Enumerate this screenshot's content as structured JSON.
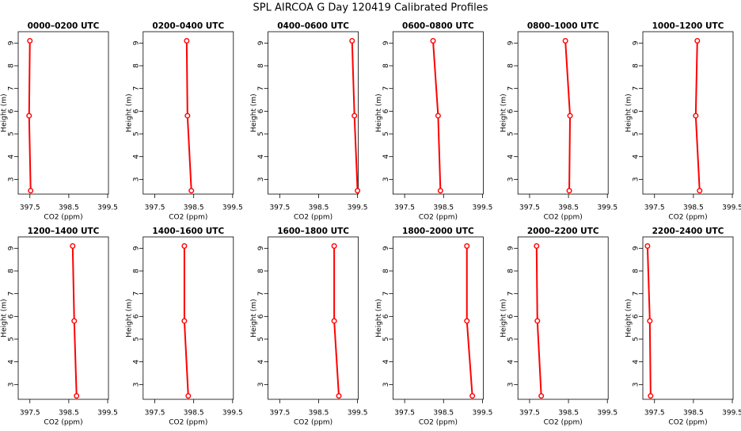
{
  "title": "SPL AIRCOA G  Day 120419  Calibrated Profiles",
  "chart_data": [
    {
      "type": "line",
      "title": "0000–0200 UTC",
      "x_label": "CO2 (ppm)",
      "y_label": "Height (m)",
      "color": "#ff0000",
      "x": [
        397.52,
        397.48,
        397.5
      ],
      "values": [
        2.5,
        5.8,
        9.1
      ],
      "xlim": [
        397.2,
        399.52
      ],
      "ylim": [
        2.35,
        9.5
      ],
      "xticks": [
        397.5,
        398.5,
        399.5
      ],
      "yticks": [
        3,
        4,
        5,
        6,
        7,
        8,
        9
      ]
    },
    {
      "type": "line",
      "title": "0200–0400 UTC",
      "x_label": "CO2 (ppm)",
      "y_label": "Height (m)",
      "color": "#ff0000",
      "x": [
        398.44,
        398.34,
        398.32
      ],
      "values": [
        2.5,
        5.8,
        9.1
      ],
      "xlim": [
        397.2,
        399.52
      ],
      "ylim": [
        2.35,
        9.5
      ],
      "xticks": [
        397.5,
        398.5,
        399.5
      ],
      "yticks": [
        3,
        4,
        5,
        6,
        7,
        8,
        9
      ]
    },
    {
      "type": "line",
      "title": "0400–0600 UTC",
      "x_label": "CO2 (ppm)",
      "y_label": "Height (m)",
      "color": "#ff0000",
      "x": [
        399.5,
        399.42,
        399.36
      ],
      "values": [
        2.5,
        5.8,
        9.1
      ],
      "xlim": [
        397.2,
        399.52
      ],
      "ylim": [
        2.35,
        9.5
      ],
      "xticks": [
        397.5,
        398.5,
        399.5
      ],
      "yticks": [
        3,
        4,
        5,
        6,
        7,
        8,
        9
      ]
    },
    {
      "type": "line",
      "title": "0600–0800 UTC",
      "x_label": "CO2 (ppm)",
      "y_label": "Height (m)",
      "color": "#ff0000",
      "x": [
        398.42,
        398.36,
        398.23
      ],
      "values": [
        2.5,
        5.8,
        9.1
      ],
      "xlim": [
        397.2,
        399.52
      ],
      "ylim": [
        2.35,
        9.5
      ],
      "xticks": [
        397.5,
        398.5,
        399.5
      ],
      "yticks": [
        3,
        4,
        5,
        6,
        7,
        8,
        9
      ]
    },
    {
      "type": "line",
      "title": "0800–1000 UTC",
      "x_label": "CO2 (ppm)",
      "y_label": "Height (m)",
      "color": "#ff0000",
      "x": [
        398.52,
        398.54,
        398.42
      ],
      "values": [
        2.5,
        5.8,
        9.1
      ],
      "xlim": [
        397.2,
        399.52
      ],
      "ylim": [
        2.35,
        9.5
      ],
      "xticks": [
        397.5,
        398.5,
        399.5
      ],
      "yticks": [
        3,
        4,
        5,
        6,
        7,
        8,
        9
      ]
    },
    {
      "type": "line",
      "title": "1000–1200 UTC",
      "x_label": "CO2 (ppm)",
      "y_label": "Height (m)",
      "color": "#ff0000",
      "x": [
        398.66,
        398.56,
        398.6
      ],
      "values": [
        2.5,
        5.8,
        9.1
      ],
      "xlim": [
        397.2,
        399.52
      ],
      "ylim": [
        2.35,
        9.5
      ],
      "xticks": [
        397.5,
        398.5,
        399.5
      ],
      "yticks": [
        3,
        4,
        5,
        6,
        7,
        8,
        9
      ]
    },
    {
      "type": "line",
      "title": "1200–1400 UTC",
      "x_label": "CO2 (ppm)",
      "y_label": "Height (m)",
      "color": "#ff0000",
      "x": [
        398.7,
        398.64,
        398.6
      ],
      "values": [
        2.5,
        5.8,
        9.1
      ],
      "xlim": [
        397.2,
        399.52
      ],
      "ylim": [
        2.35,
        9.5
      ],
      "xticks": [
        397.5,
        398.5,
        399.5
      ],
      "yticks": [
        3,
        4,
        5,
        6,
        7,
        8,
        9
      ]
    },
    {
      "type": "line",
      "title": "1400–1600 UTC",
      "x_label": "CO2 (ppm)",
      "y_label": "Height (m)",
      "color": "#ff0000",
      "x": [
        398.36,
        398.26,
        398.26
      ],
      "values": [
        2.5,
        5.8,
        9.1
      ],
      "xlim": [
        397.2,
        399.52
      ],
      "ylim": [
        2.35,
        9.5
      ],
      "xticks": [
        397.5,
        398.5,
        399.5
      ],
      "yticks": [
        3,
        4,
        5,
        6,
        7,
        8,
        9
      ]
    },
    {
      "type": "line",
      "title": "1600–1800 UTC",
      "x_label": "CO2 (ppm)",
      "y_label": "Height (m)",
      "color": "#ff0000",
      "x": [
        399.02,
        398.9,
        398.9
      ],
      "values": [
        2.5,
        5.8,
        9.1
      ],
      "xlim": [
        397.2,
        399.52
      ],
      "ylim": [
        2.35,
        9.5
      ],
      "xticks": [
        397.5,
        398.5,
        399.5
      ],
      "yticks": [
        3,
        4,
        5,
        6,
        7,
        8,
        9
      ]
    },
    {
      "type": "line",
      "title": "1800–2000 UTC",
      "x_label": "CO2 (ppm)",
      "y_label": "Height (m)",
      "color": "#ff0000",
      "x": [
        399.24,
        399.1,
        399.1
      ],
      "values": [
        2.5,
        5.8,
        9.1
      ],
      "xlim": [
        397.2,
        399.52
      ],
      "ylim": [
        2.35,
        9.5
      ],
      "xticks": [
        397.5,
        398.5,
        399.5
      ],
      "yticks": [
        3,
        4,
        5,
        6,
        7,
        8,
        9
      ]
    },
    {
      "type": "line",
      "title": "2000–2200 UTC",
      "x_label": "CO2 (ppm)",
      "y_label": "Height (m)",
      "color": "#ff0000",
      "x": [
        397.8,
        397.7,
        397.68
      ],
      "values": [
        2.5,
        5.8,
        9.1
      ],
      "xlim": [
        397.2,
        399.52
      ],
      "ylim": [
        2.35,
        9.5
      ],
      "xticks": [
        397.5,
        398.5,
        399.5
      ],
      "yticks": [
        3,
        4,
        5,
        6,
        7,
        8,
        9
      ]
    },
    {
      "type": "line",
      "title": "2200–2400 UTC",
      "x_label": "CO2 (ppm)",
      "y_label": "Height (m)",
      "color": "#ff0000",
      "x": [
        397.4,
        397.38,
        397.32
      ],
      "values": [
        2.5,
        5.8,
        9.1
      ],
      "xlim": [
        397.2,
        399.52
      ],
      "ylim": [
        2.35,
        9.5
      ],
      "xticks": [
        397.5,
        398.5,
        399.5
      ],
      "yticks": [
        3,
        4,
        5,
        6,
        7,
        8,
        9
      ]
    }
  ]
}
